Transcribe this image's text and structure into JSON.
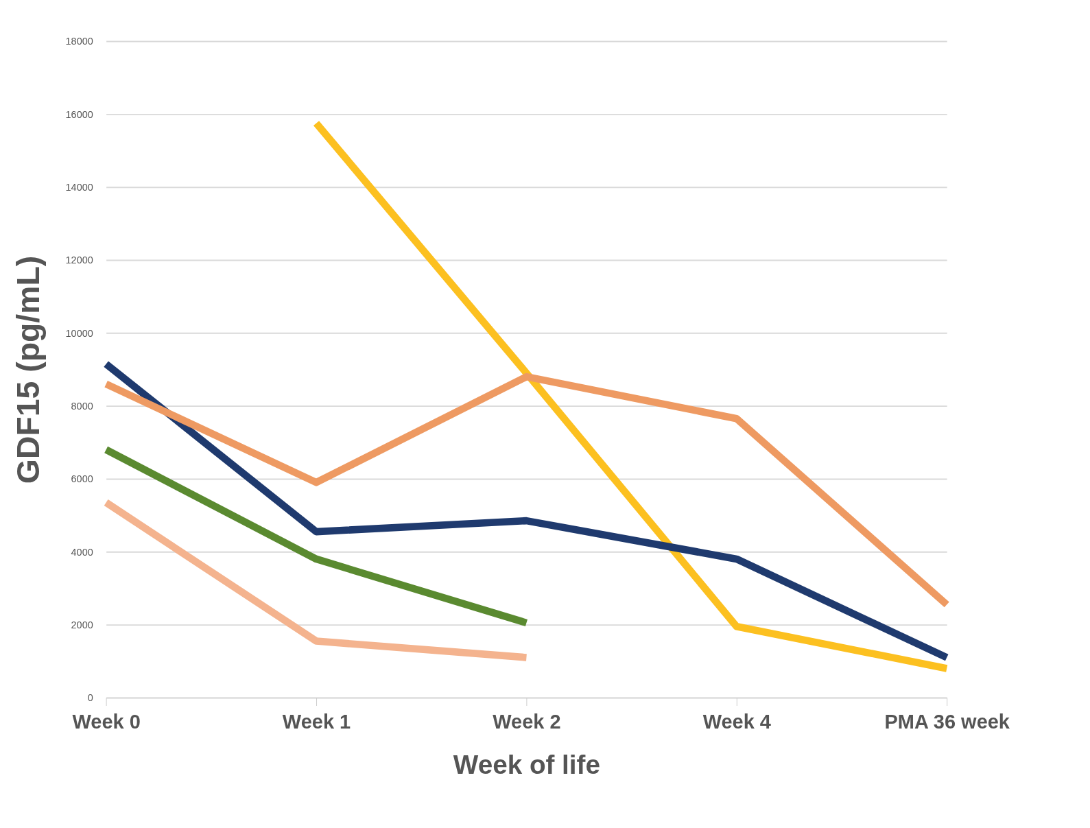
{
  "chart_data": {
    "type": "line",
    "xlabel": "Week of life",
    "ylabel": "GDF15 (pg/mL)",
    "categories": [
      "Week 0",
      "Week 1",
      "Week 2",
      "Week 4",
      "PMA 36 week"
    ],
    "series": [
      {
        "color": "#fcc020",
        "values": [
          null,
          15750,
          8900,
          1950,
          800
        ]
      },
      {
        "color": "#1f3a6e",
        "values": [
          9150,
          4550,
          4850,
          3800,
          1100
        ]
      },
      {
        "color": "#ee9a62",
        "values": [
          8600,
          5900,
          8800,
          7650,
          2550
        ]
      },
      {
        "color": "#5a8a30",
        "values": [
          6800,
          3800,
          2050,
          null,
          null
        ]
      },
      {
        "color": "#f4b38e",
        "values": [
          5350,
          1550,
          1100,
          null,
          null
        ]
      }
    ],
    "ylim": [
      0,
      18000
    ],
    "yticks": [
      0,
      2000,
      4000,
      6000,
      8000,
      10000,
      12000,
      14000,
      16000,
      18000
    ],
    "grid": "y",
    "marker": "none",
    "line_style": "solid"
  }
}
